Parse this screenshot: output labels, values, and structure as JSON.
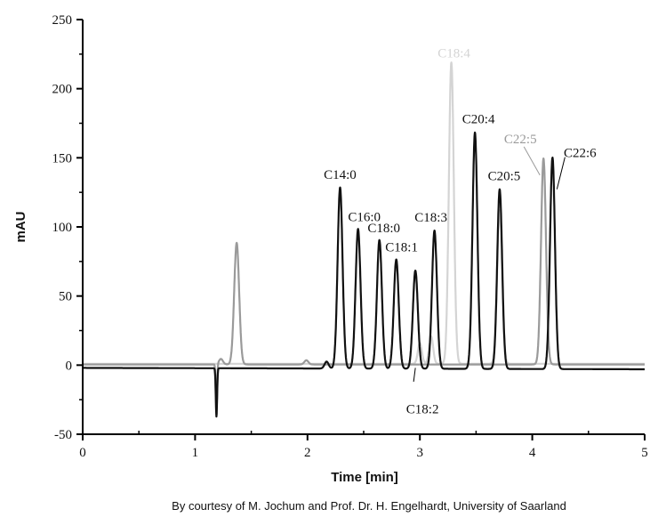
{
  "chart_data": {
    "type": "line",
    "title": "",
    "xlabel": "Time [min]",
    "ylabel": "mAU",
    "xlim": [
      0,
      5
    ],
    "ylim": [
      -50,
      250
    ],
    "xticks": [
      "0",
      "1",
      "2",
      "3",
      "4",
      "5"
    ],
    "yticks": [
      "-50",
      "0",
      "50",
      "100",
      "150",
      "200",
      "250"
    ],
    "grid": false,
    "legend": "none",
    "series": [
      {
        "color": "#111111",
        "peaks": [
          {
            "x": 1.19,
            "y": -35,
            "label": ""
          },
          {
            "x": 2.17,
            "y": 5,
            "label": ""
          },
          {
            "x": 2.29,
            "y": 131,
            "label": "C14:0"
          },
          {
            "x": 2.45,
            "y": 101,
            "label": "C16:0"
          },
          {
            "x": 2.64,
            "y": 93,
            "label": "C18:0"
          },
          {
            "x": 2.79,
            "y": 79,
            "label": "C18:1"
          },
          {
            "x": 2.96,
            "y": 71,
            "label": "C18:2"
          },
          {
            "x": 3.13,
            "y": 100,
            "label": "C18:3"
          },
          {
            "x": 3.49,
            "y": 171,
            "label": "C20:4"
          },
          {
            "x": 3.71,
            "y": 130,
            "label": "C20:5"
          },
          {
            "x": 4.18,
            "y": 153,
            "label": "C22:6"
          }
        ]
      },
      {
        "color": "#9a9a9a",
        "peaks": [
          {
            "x": 1.19,
            "y": -33,
            "label": ""
          },
          {
            "x": 1.23,
            "y": 4,
            "label": ""
          },
          {
            "x": 1.37,
            "y": 88,
            "label": ""
          },
          {
            "x": 1.99,
            "y": 3,
            "label": ""
          },
          {
            "x": 4.1,
            "y": 149,
            "label": "C22:5"
          }
        ]
      },
      {
        "color": "#d4d4d4",
        "peaks": [
          {
            "x": 3.0,
            "y": 15,
            "label": ""
          },
          {
            "x": 3.1,
            "y": 20,
            "label": ""
          },
          {
            "x": 3.28,
            "y": 218,
            "label": "C18:4"
          },
          {
            "x": 3.71,
            "y": 111,
            "label": ""
          }
        ]
      }
    ],
    "caption": "By courtesy of M. Jochum and Prof. Dr. H. Engelhardt, University of Saarland"
  }
}
